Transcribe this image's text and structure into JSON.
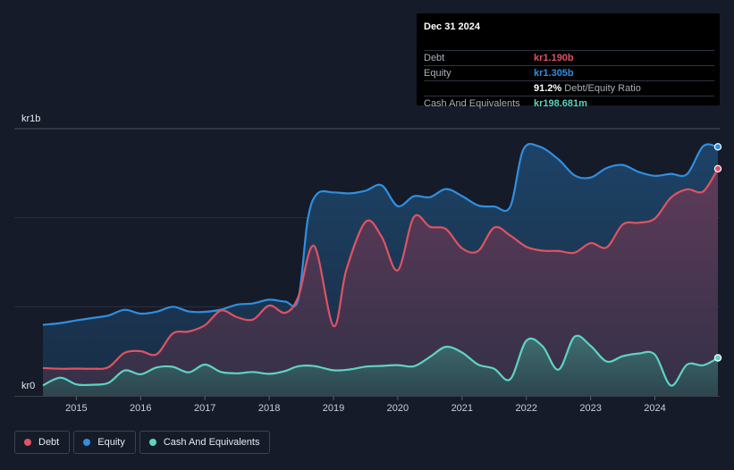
{
  "chart_data": {
    "type": "area",
    "y_axis_labels": {
      "top": "kr1b",
      "bottom": "kr0"
    },
    "ylim": [
      0,
      1.4
    ],
    "xlim": [
      2014.48,
      2025.0
    ],
    "x_ticks": [
      "2015",
      "2016",
      "2017",
      "2018",
      "2019",
      "2020",
      "2021",
      "2022",
      "2023",
      "2024"
    ],
    "series": [
      {
        "name": "Equity",
        "color": "#2f8fe0",
        "points": [
          [
            2014.48,
            0.372
          ],
          [
            2014.75,
            0.381
          ],
          [
            2015.0,
            0.395
          ],
          [
            2015.25,
            0.408
          ],
          [
            2015.5,
            0.421
          ],
          [
            2015.75,
            0.451
          ],
          [
            2016.0,
            0.431
          ],
          [
            2016.25,
            0.441
          ],
          [
            2016.5,
            0.467
          ],
          [
            2016.75,
            0.442
          ],
          [
            2017.0,
            0.44
          ],
          [
            2017.25,
            0.452
          ],
          [
            2017.5,
            0.478
          ],
          [
            2017.75,
            0.484
          ],
          [
            2018.0,
            0.504
          ],
          [
            2018.25,
            0.494
          ],
          [
            2018.45,
            0.504
          ],
          [
            2018.6,
            0.924
          ],
          [
            2018.75,
            1.06
          ],
          [
            2019.0,
            1.066
          ],
          [
            2019.25,
            1.061
          ],
          [
            2019.5,
            1.075
          ],
          [
            2019.75,
            1.103
          ],
          [
            2020.0,
            0.994
          ],
          [
            2020.25,
            1.046
          ],
          [
            2020.5,
            1.041
          ],
          [
            2020.75,
            1.084
          ],
          [
            2021.0,
            1.047
          ],
          [
            2021.25,
            0.998
          ],
          [
            2021.5,
            0.992
          ],
          [
            2021.75,
            0.991
          ],
          [
            2021.95,
            1.288
          ],
          [
            2022.2,
            1.307
          ],
          [
            2022.5,
            1.239
          ],
          [
            2022.75,
            1.155
          ],
          [
            2023.0,
            1.144
          ],
          [
            2023.25,
            1.194
          ],
          [
            2023.5,
            1.21
          ],
          [
            2023.75,
            1.173
          ],
          [
            2024.0,
            1.153
          ],
          [
            2024.25,
            1.163
          ],
          [
            2024.5,
            1.162
          ],
          [
            2024.75,
            1.308
          ],
          [
            2024.98,
            1.305
          ]
        ]
      },
      {
        "name": "Debt",
        "color": "#e05262",
        "points": [
          [
            2014.48,
            0.146
          ],
          [
            2014.75,
            0.142
          ],
          [
            2015.0,
            0.143
          ],
          [
            2015.25,
            0.142
          ],
          [
            2015.5,
            0.15
          ],
          [
            2015.75,
            0.225
          ],
          [
            2016.0,
            0.234
          ],
          [
            2016.25,
            0.218
          ],
          [
            2016.5,
            0.327
          ],
          [
            2016.75,
            0.337
          ],
          [
            2017.0,
            0.37
          ],
          [
            2017.25,
            0.447
          ],
          [
            2017.5,
            0.412
          ],
          [
            2017.75,
            0.4
          ],
          [
            2018.0,
            0.473
          ],
          [
            2018.25,
            0.435
          ],
          [
            2018.45,
            0.517
          ],
          [
            2018.7,
            0.785
          ],
          [
            2019.0,
            0.366
          ],
          [
            2019.2,
            0.66
          ],
          [
            2019.5,
            0.912
          ],
          [
            2019.75,
            0.834
          ],
          [
            2020.0,
            0.658
          ],
          [
            2020.25,
            0.937
          ],
          [
            2020.5,
            0.886
          ],
          [
            2020.75,
            0.874
          ],
          [
            2021.0,
            0.773
          ],
          [
            2021.25,
            0.759
          ],
          [
            2021.5,
            0.882
          ],
          [
            2021.75,
            0.84
          ],
          [
            2022.0,
            0.781
          ],
          [
            2022.25,
            0.761
          ],
          [
            2022.5,
            0.759
          ],
          [
            2022.75,
            0.75
          ],
          [
            2023.0,
            0.8
          ],
          [
            2023.25,
            0.778
          ],
          [
            2023.5,
            0.898
          ],
          [
            2023.75,
            0.907
          ],
          [
            2024.0,
            0.929
          ],
          [
            2024.25,
            1.039
          ],
          [
            2024.5,
            1.082
          ],
          [
            2024.75,
            1.071
          ],
          [
            2024.98,
            1.19
          ]
        ]
      },
      {
        "name": "Cash And Equivalents",
        "color": "#5fd3c3",
        "points": [
          [
            2014.48,
            0.055
          ],
          [
            2014.75,
            0.095
          ],
          [
            2015.0,
            0.06
          ],
          [
            2015.25,
            0.058
          ],
          [
            2015.5,
            0.068
          ],
          [
            2015.75,
            0.133
          ],
          [
            2016.0,
            0.113
          ],
          [
            2016.25,
            0.149
          ],
          [
            2016.5,
            0.152
          ],
          [
            2016.75,
            0.123
          ],
          [
            2017.0,
            0.164
          ],
          [
            2017.25,
            0.125
          ],
          [
            2017.5,
            0.118
          ],
          [
            2017.75,
            0.125
          ],
          [
            2018.0,
            0.115
          ],
          [
            2018.25,
            0.13
          ],
          [
            2018.45,
            0.155
          ],
          [
            2018.7,
            0.156
          ],
          [
            2019.0,
            0.134
          ],
          [
            2019.25,
            0.138
          ],
          [
            2019.5,
            0.153
          ],
          [
            2019.75,
            0.157
          ],
          [
            2020.0,
            0.161
          ],
          [
            2020.25,
            0.155
          ],
          [
            2020.5,
            0.204
          ],
          [
            2020.75,
            0.257
          ],
          [
            2021.0,
            0.227
          ],
          [
            2021.25,
            0.164
          ],
          [
            2021.5,
            0.142
          ],
          [
            2021.75,
            0.087
          ],
          [
            2022.0,
            0.289
          ],
          [
            2022.25,
            0.261
          ],
          [
            2022.5,
            0.137
          ],
          [
            2022.75,
            0.31
          ],
          [
            2023.0,
            0.262
          ],
          [
            2023.25,
            0.18
          ],
          [
            2023.5,
            0.208
          ],
          [
            2023.75,
            0.222
          ],
          [
            2024.0,
            0.216
          ],
          [
            2024.25,
            0.054
          ],
          [
            2024.5,
            0.164
          ],
          [
            2024.75,
            0.16
          ],
          [
            2024.98,
            0.199
          ]
        ]
      }
    ],
    "tooltip": {
      "date": "Dec 31 2024",
      "rows": [
        {
          "label": "Debt",
          "value": "kr1.190b",
          "color": "#e05262"
        },
        {
          "label": "Equity",
          "value": "kr1.305b",
          "color": "#2f8fe0"
        },
        {
          "label": "",
          "value": "91.2%",
          "suffix": "Debt/Equity Ratio",
          "color": "#ffffff"
        },
        {
          "label": "Cash And Equivalents",
          "value": "kr198.681m",
          "color": "#5fd3c3"
        }
      ]
    },
    "legend": [
      {
        "label": "Debt",
        "color": "#e05262"
      },
      {
        "label": "Equity",
        "color": "#2f8fe0"
      },
      {
        "label": "Cash And Equivalents",
        "color": "#5fd3c3"
      }
    ]
  }
}
